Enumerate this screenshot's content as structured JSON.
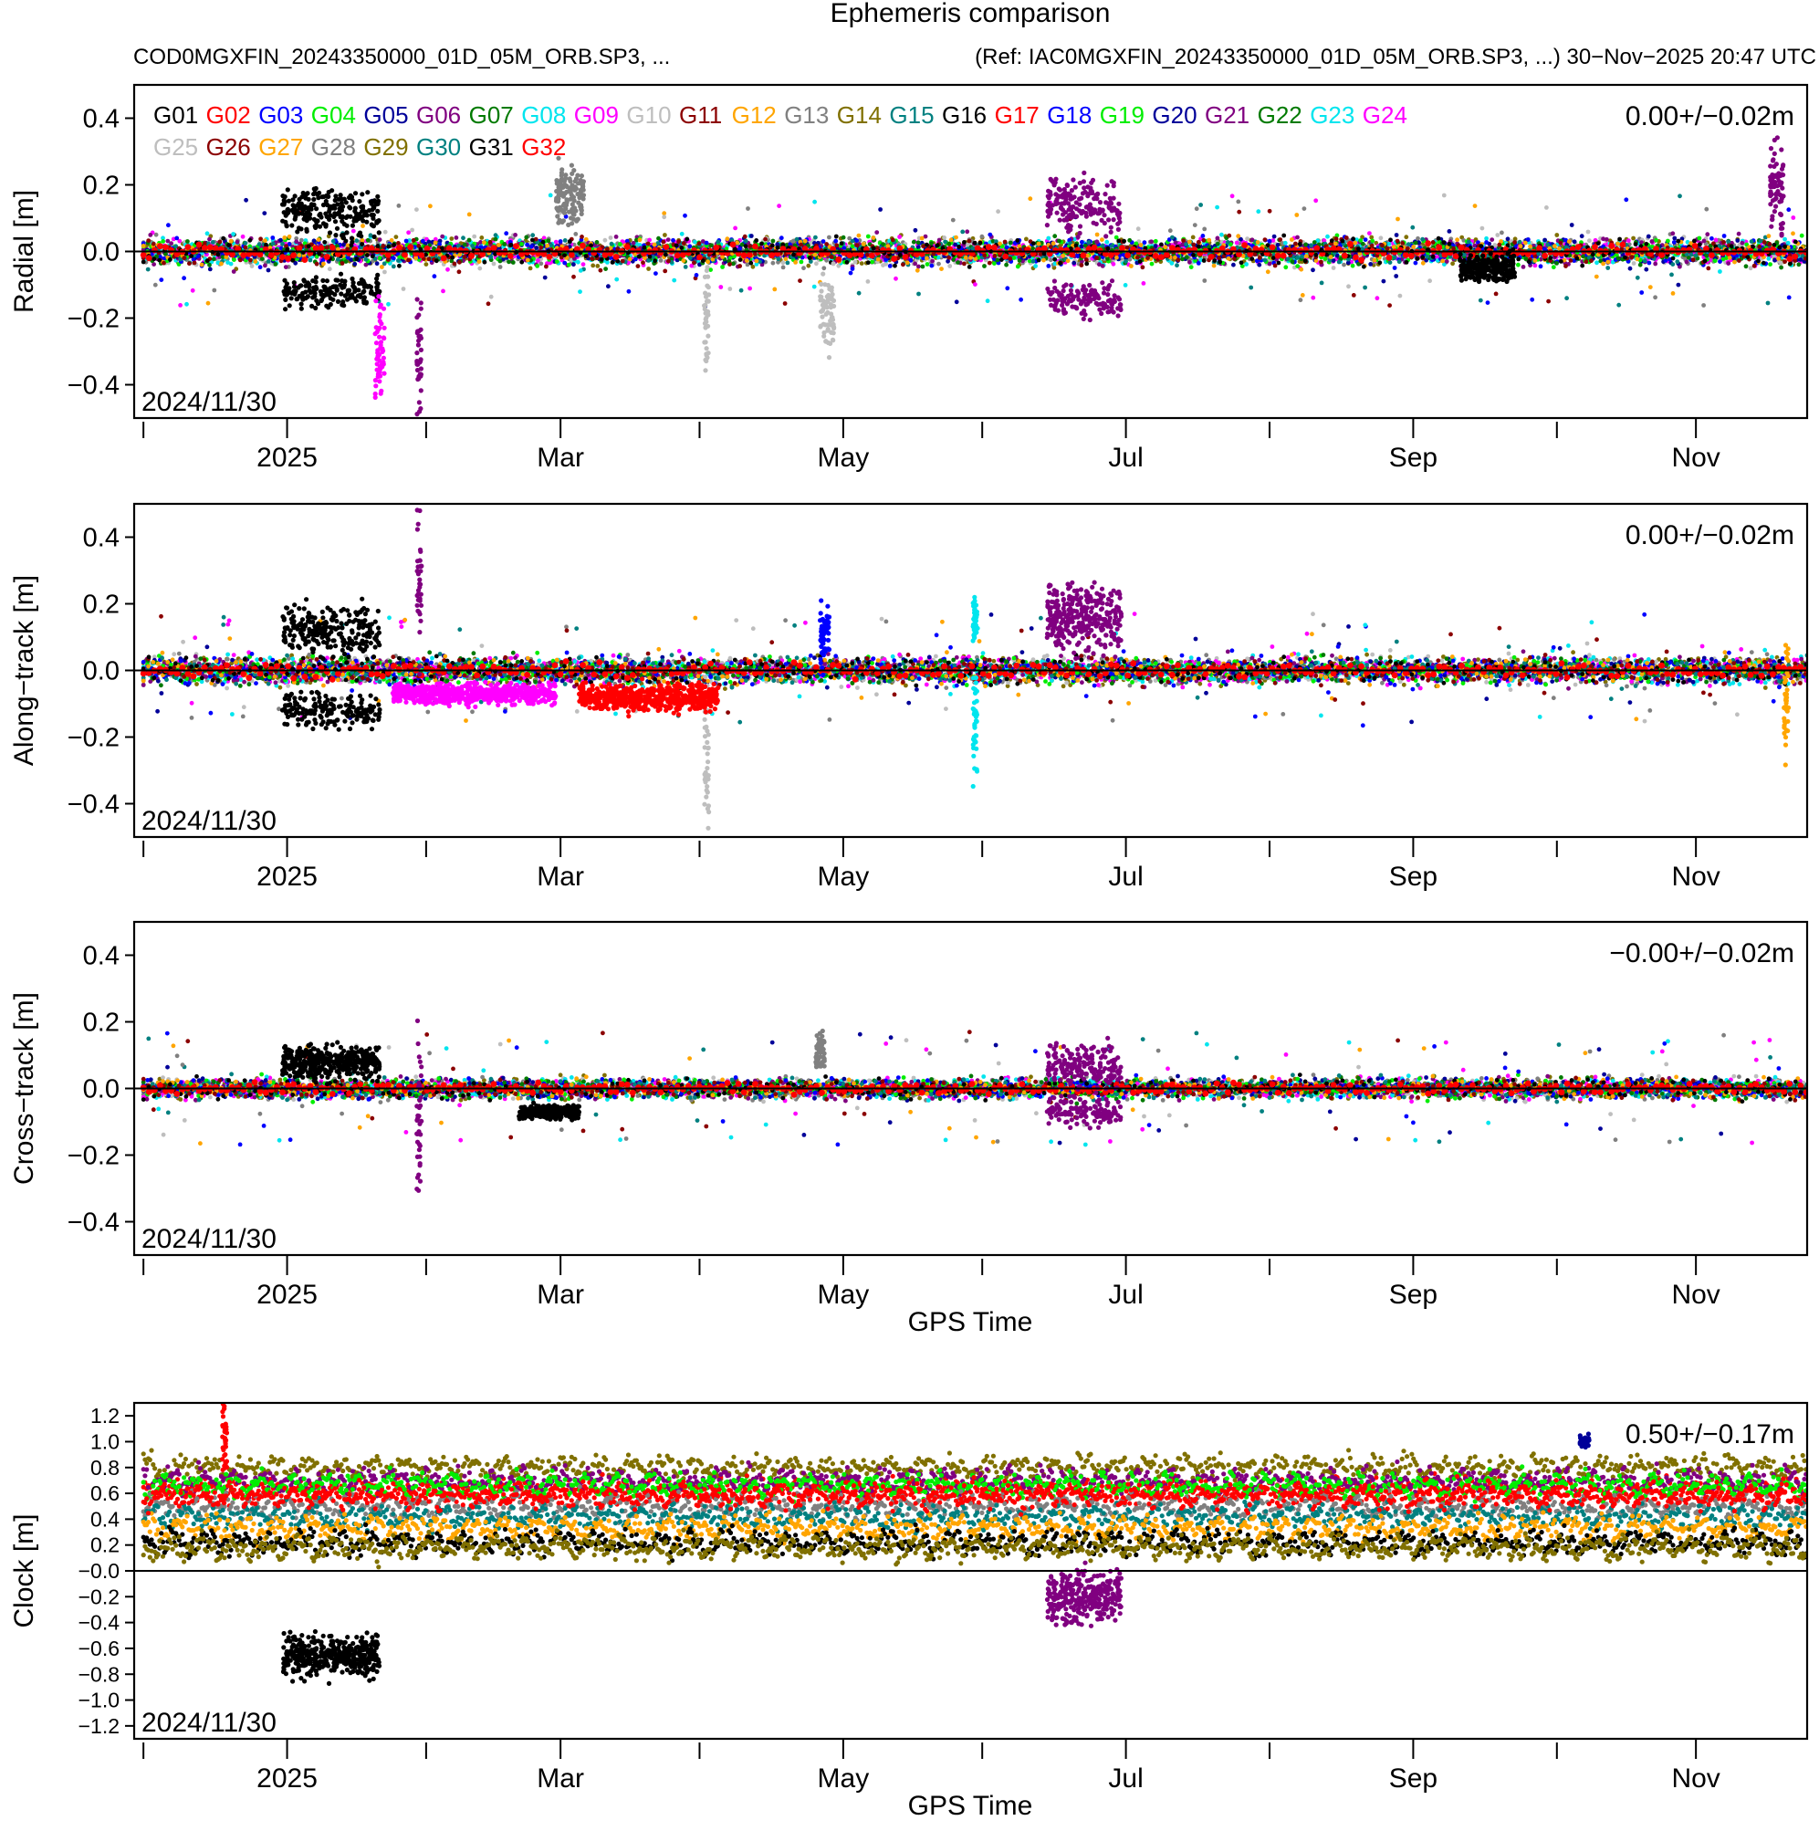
{
  "chart_data": {
    "type": "scatter",
    "title": "Ephemeris comparison",
    "subtitle_left": "COD0MGXFIN_20243350000_01D_05M_ORB.SP3, ...",
    "subtitle_right": "(Ref: IAC0MGXFIN_20243350000_01D_05M_ORB.SP3, ...)  30−Nov−2025 20:47 UTC",
    "xlabel": "GPS Time",
    "x_range_days": [
      0,
      365
    ],
    "x_ticks": [
      {
        "label": "2025",
        "day": 32
      },
      {
        "label": "Mar",
        "day": 91
      },
      {
        "label": "May",
        "day": 152
      },
      {
        "label": "Jul",
        "day": 213
      },
      {
        "label": "Sep",
        "day": 275
      },
      {
        "label": "Nov",
        "day": 336
      }
    ],
    "x_minor_ticks_days": [
      1,
      62,
      121,
      182,
      244,
      306
    ],
    "x_range_plot": [
      -1,
      360
    ],
    "satellites": [
      {
        "name": "G01",
        "color": "#000000"
      },
      {
        "name": "G02",
        "color": "#ff0000"
      },
      {
        "name": "G03",
        "color": "#0000ff"
      },
      {
        "name": "G04",
        "color": "#00ee00"
      },
      {
        "name": "G05",
        "color": "#000099"
      },
      {
        "name": "G06",
        "color": "#800080"
      },
      {
        "name": "G07",
        "color": "#007a00"
      },
      {
        "name": "G08",
        "color": "#00e5ee"
      },
      {
        "name": "G09",
        "color": "#ff00ff"
      },
      {
        "name": "G10",
        "color": "#bebebe"
      },
      {
        "name": "G11",
        "color": "#8b0000"
      },
      {
        "name": "G12",
        "color": "#ffa500"
      },
      {
        "name": "G13",
        "color": "#808080"
      },
      {
        "name": "G14",
        "color": "#807000"
      },
      {
        "name": "G15",
        "color": "#008080"
      },
      {
        "name": "G16",
        "color": "#000000"
      },
      {
        "name": "G17",
        "color": "#ff0000"
      },
      {
        "name": "G18",
        "color": "#0000ff"
      },
      {
        "name": "G19",
        "color": "#00ee00"
      },
      {
        "name": "G20",
        "color": "#000099"
      },
      {
        "name": "G21",
        "color": "#800080"
      },
      {
        "name": "G22",
        "color": "#007a00"
      },
      {
        "name": "G23",
        "color": "#00e5ee"
      },
      {
        "name": "G24",
        "color": "#ff00ff"
      },
      {
        "name": "G25",
        "color": "#bebebe"
      },
      {
        "name": "G26",
        "color": "#8b0000"
      },
      {
        "name": "G27",
        "color": "#ffa500"
      },
      {
        "name": "G28",
        "color": "#808080"
      },
      {
        "name": "G29",
        "color": "#807000"
      },
      {
        "name": "G30",
        "color": "#008080"
      },
      {
        "name": "G31",
        "color": "#000000"
      },
      {
        "name": "G32",
        "color": "#ff0000"
      }
    ],
    "panels": [
      {
        "id": "radial",
        "ylabel": "Radial [m]",
        "ylim": [
          -0.5,
          0.5
        ],
        "y_ticks": [
          -0.4,
          -0.2,
          0.0,
          0.2,
          0.4
        ],
        "y_tick_labels": [
          "−0.4",
          "−0.2",
          "0.0",
          "0.2",
          "0.4"
        ],
        "stat": "0.00+/−0.02m",
        "date_label": "2024/11/30",
        "show_legend": true,
        "show_xlabel": false,
        "noise": 0.02,
        "baseline": 0.0,
        "anomalies": [
          {
            "sat": "G01",
            "from": 31,
            "to": 52,
            "center": 0.12,
            "spread": 0.035,
            "mirror": true
          },
          {
            "sat": "G06",
            "from": 196,
            "to": 212,
            "center": 0.14,
            "spread": 0.04,
            "mirror": true
          },
          {
            "sat": "G09",
            "from": 51,
            "to": 53,
            "center": -0.3,
            "spread": 0.06,
            "mirror": false
          },
          {
            "sat": "G06",
            "from": 60,
            "to": 61,
            "center": -0.35,
            "spread": 0.1,
            "mirror": false
          },
          {
            "sat": "G10",
            "from": 122,
            "to": 123,
            "center": -0.2,
            "spread": 0.08,
            "mirror": false
          },
          {
            "sat": "G10",
            "from": 147,
            "to": 150,
            "center": -0.18,
            "spread": 0.05,
            "mirror": false
          },
          {
            "sat": "G13",
            "from": 90,
            "to": 96,
            "center": 0.17,
            "spread": 0.04,
            "mirror": false
          },
          {
            "sat": "G21",
            "from": 352,
            "to": 355,
            "center": 0.18,
            "spread": 0.06,
            "mirror": false
          },
          {
            "sat": "G01",
            "from": 285,
            "to": 297,
            "center": -0.05,
            "spread": 0.02,
            "mirror": false
          }
        ]
      },
      {
        "id": "along",
        "ylabel": "Along−track [m]",
        "ylim": [
          -0.5,
          0.5
        ],
        "y_ticks": [
          -0.4,
          -0.2,
          0.0,
          0.2,
          0.4
        ],
        "y_tick_labels": [
          "−0.4",
          "−0.2",
          "0.0",
          "0.2",
          "0.4"
        ],
        "stat": "0.00+/−0.02m",
        "date_label": "2024/11/30",
        "show_legend": false,
        "show_xlabel": false,
        "noise": 0.02,
        "baseline": 0.0,
        "anomalies": [
          {
            "sat": "G01",
            "from": 31,
            "to": 52,
            "center": 0.12,
            "spread": 0.035,
            "mirror": true
          },
          {
            "sat": "G06",
            "from": 196,
            "to": 212,
            "center": 0.16,
            "spread": 0.05,
            "mirror": false
          },
          {
            "sat": "G06",
            "from": 60,
            "to": 61,
            "center": 0.3,
            "spread": 0.12,
            "mirror": false
          },
          {
            "sat": "G10",
            "from": 122,
            "to": 123,
            "center": -0.25,
            "spread": 0.1,
            "mirror": false
          },
          {
            "sat": "G08",
            "from": 180,
            "to": 181,
            "center": -0.18,
            "spread": 0.08,
            "mirror": false
          },
          {
            "sat": "G08",
            "from": 180,
            "to": 181,
            "center": 0.16,
            "spread": 0.03,
            "mirror": false
          },
          {
            "sat": "G02",
            "from": 95,
            "to": 125,
            "center": -0.08,
            "spread": 0.02,
            "mirror": false
          },
          {
            "sat": "G09",
            "from": 55,
            "to": 90,
            "center": -0.07,
            "spread": 0.015,
            "mirror": false
          },
          {
            "sat": "G03",
            "from": 147,
            "to": 149,
            "center": 0.1,
            "spread": 0.05,
            "mirror": false
          },
          {
            "sat": "G12",
            "from": 355,
            "to": 356,
            "center": -0.1,
            "spread": 0.08,
            "mirror": false
          }
        ]
      },
      {
        "id": "cross",
        "ylabel": "Cross−track [m]",
        "ylim": [
          -0.5,
          0.5
        ],
        "y_ticks": [
          -0.4,
          -0.2,
          0.0,
          0.2,
          0.4
        ],
        "y_tick_labels": [
          "−0.4",
          "−0.2",
          "0.0",
          "0.2",
          "0.4"
        ],
        "stat": "−0.00+/−0.02m",
        "date_label": "2024/11/30",
        "show_legend": false,
        "show_xlabel": true,
        "noise": 0.015,
        "baseline": 0.0,
        "anomalies": [
          {
            "sat": "G01",
            "from": 31,
            "to": 52,
            "center": 0.08,
            "spread": 0.025,
            "mirror": false
          },
          {
            "sat": "G06",
            "from": 196,
            "to": 212,
            "center": 0.07,
            "spread": 0.03,
            "mirror": true
          },
          {
            "sat": "G01",
            "from": 82,
            "to": 95,
            "center": -0.07,
            "spread": 0.01,
            "mirror": false
          },
          {
            "sat": "G06",
            "from": 60,
            "to": 61,
            "center": -0.1,
            "spread": 0.12,
            "mirror": false
          },
          {
            "sat": "G13",
            "from": 146,
            "to": 148,
            "center": 0.11,
            "spread": 0.03,
            "mirror": false
          }
        ]
      },
      {
        "id": "clock",
        "ylabel": "Clock [m]",
        "ylim": [
          -1.3,
          1.3
        ],
        "y_ticks": [
          -1.2,
          -1.0,
          -0.8,
          -0.6,
          -0.4,
          -0.2,
          0.0,
          0.2,
          0.4,
          0.6,
          0.8,
          1.0,
          1.2
        ],
        "y_tick_labels": [
          "−1.2",
          "−1.0",
          "−0.8",
          "−0.6",
          "−0.4",
          "−0.2",
          "−0.0",
          "0.2",
          "0.4",
          "0.6",
          "0.8",
          "1.0",
          "1.2"
        ],
        "stat": "0.50+/−0.17m",
        "date_label": "2024/11/30",
        "show_legend": false,
        "show_xlabel": true,
        "noise": 0.05,
        "baseline": 0.5,
        "clock_levels": [
          {
            "sat": "G14",
            "level": 0.8
          },
          {
            "sat": "G02",
            "level": 0.62
          },
          {
            "sat": "G06",
            "level": 0.7
          },
          {
            "sat": "G04",
            "level": 0.66
          },
          {
            "sat": "G13",
            "level": 0.5
          },
          {
            "sat": "G15",
            "level": 0.42
          },
          {
            "sat": "G12",
            "level": 0.33
          },
          {
            "sat": "G01",
            "level": 0.22
          },
          {
            "sat": "G29",
            "level": 0.18
          },
          {
            "sat": "G17",
            "level": 0.58
          }
        ],
        "anomalies": [
          {
            "sat": "G01",
            "from": 31,
            "to": 52,
            "center": -0.65,
            "spread": 0.08,
            "mirror": false
          },
          {
            "sat": "G06",
            "from": 196,
            "to": 212,
            "center": -0.2,
            "spread": 0.1,
            "mirror": false
          },
          {
            "sat": "G05",
            "from": 311,
            "to": 313,
            "center": 1.0,
            "spread": 0.02,
            "mirror": false
          },
          {
            "sat": "G02",
            "from": 18,
            "to": 19,
            "center": 1.0,
            "spread": 0.15,
            "mirror": false
          }
        ]
      }
    ]
  }
}
